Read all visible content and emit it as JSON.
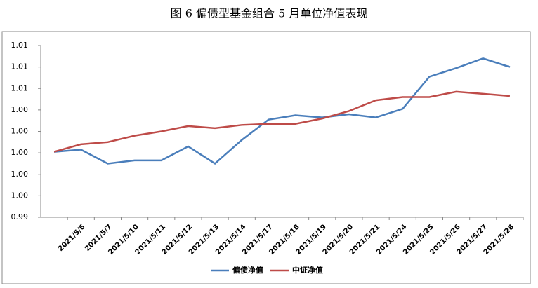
{
  "chart_data": {
    "type": "line",
    "title": "图 6 偏债型基金组合 5 月单位净值表现",
    "categories": [
      null,
      "2021/5/6",
      "2021/5/7",
      "2021/5/10",
      "2021/5/11",
      "2021/5/12",
      "2021/5/13",
      "2021/5/14",
      "2021/5/17",
      "2021/5/18",
      "2021/5/19",
      "2021/5/20",
      "2021/5/21",
      "2021/5/24",
      "2021/5/25",
      "2021/5/26",
      "2021/5/27",
      "2021/5/28"
    ],
    "series": [
      {
        "name": "偏债净值",
        "color": "#4a7ebb",
        "values": [
          1.0001,
          1.0003,
          0.999,
          0.9993,
          0.9993,
          1.0006,
          0.999,
          1.0012,
          1.0031,
          1.0035,
          1.0033,
          1.0036,
          1.0033,
          1.0041,
          1.0071,
          1.0079,
          1.0088,
          1.008
        ]
      },
      {
        "name": "中证净值",
        "color": "#be4b48",
        "values": [
          1.0001,
          1.0008,
          1.001,
          1.0016,
          1.002,
          1.0025,
          1.0023,
          1.0026,
          1.0027,
          1.0027,
          1.0032,
          1.0039,
          1.0049,
          1.0052,
          1.0052,
          1.0057,
          1.0055,
          1.0053
        ]
      }
    ],
    "ylim": [
      0.994,
      1.01
    ],
    "yticks": [
      {
        "value": 0.994,
        "label": "0.99"
      },
      {
        "value": 0.996,
        "label": "1.00"
      },
      {
        "value": 0.998,
        "label": "1.00"
      },
      {
        "value": 1.0,
        "label": "1.00"
      },
      {
        "value": 1.002,
        "label": "1.00"
      },
      {
        "value": 1.004,
        "label": "1.00"
      },
      {
        "value": 1.006,
        "label": "1.01"
      },
      {
        "value": 1.008,
        "label": "1.01"
      },
      {
        "value": 1.01,
        "label": "1.01"
      }
    ],
    "grid": false,
    "legend": "bottom"
  }
}
